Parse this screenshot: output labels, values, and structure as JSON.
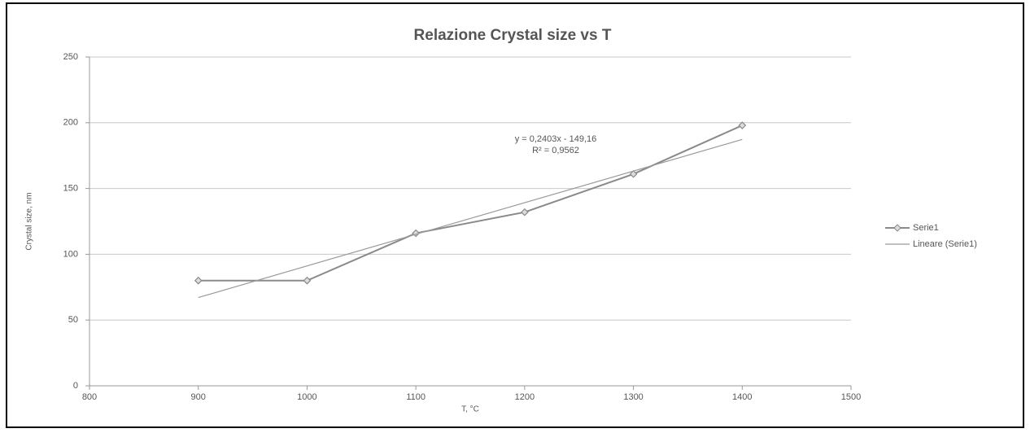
{
  "chart_data": {
    "type": "line",
    "title": "Relazione Crystal size vs T",
    "xlabel": "T, °C",
    "ylabel": "Crystal size, nm",
    "annotations": [
      "y = 0,2403x - 149,16",
      "R² = 0,9562"
    ],
    "series": [
      {
        "name": "Serie1",
        "color": "#8a8a8a",
        "marker": "diamond",
        "x": [
          900,
          1000,
          1100,
          1200,
          1300,
          1400
        ],
        "values": [
          80,
          80,
          116,
          132,
          161,
          198
        ]
      },
      {
        "name": "Lineare (Serie1)",
        "color": "#9a9a9a",
        "marker": "none",
        "x": [
          900,
          1400
        ],
        "values": [
          67.1,
          187.3
        ]
      }
    ],
    "xlim": [
      800,
      1500
    ],
    "xticks": [
      800,
      900,
      1000,
      1100,
      1200,
      1300,
      1400,
      1500
    ],
    "ylim": [
      0,
      250
    ],
    "yticks": [
      0,
      50,
      100,
      150,
      200,
      250
    ],
    "grid": true,
    "legend": "right"
  }
}
